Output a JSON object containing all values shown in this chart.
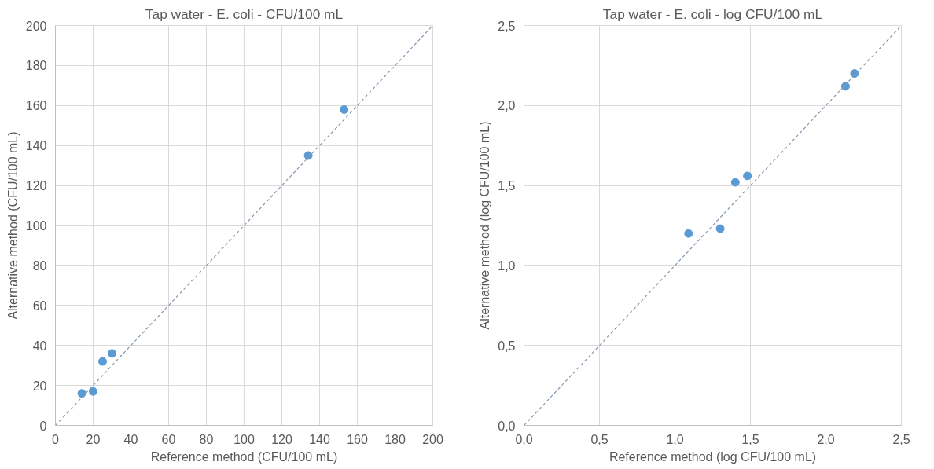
{
  "chart_data": [
    {
      "type": "scatter",
      "title": "Tap water - E. coli - CFU/100 mL",
      "xlabel": "Reference method (CFU/100 mL)",
      "ylabel": "Alternative method (CFU/100 mL)",
      "xlim": [
        0,
        200
      ],
      "ylim": [
        0,
        200
      ],
      "xticks": [
        0,
        20,
        40,
        60,
        80,
        100,
        120,
        140,
        160,
        180,
        200
      ],
      "yticks": [
        0,
        20,
        40,
        60,
        80,
        100,
        120,
        140,
        160,
        180,
        200
      ],
      "grid": true,
      "marker": "circle",
      "series": [
        {
          "color": "#5b9bd5",
          "x": [
            14,
            20,
            25,
            30,
            134,
            153
          ],
          "values": [
            16,
            17,
            32,
            36,
            135,
            158
          ]
        },
        {
          "type": "line",
          "color": "#8497b0",
          "line_style": "dashed",
          "marker": "none",
          "x": [
            0,
            200
          ],
          "values": [
            0,
            200
          ]
        }
      ]
    },
    {
      "type": "scatter",
      "title": "Tap water - E. coli - log CFU/100 mL",
      "xlabel": "Reference method (log CFU/100 mL)",
      "ylabel": "Alternative method (log CFU/100 mL)",
      "xlim": [
        0,
        2.5
      ],
      "ylim": [
        0,
        2.5
      ],
      "xticks": [
        {
          "value": 0,
          "label": "0,0"
        },
        {
          "value": 0.5,
          "label": "0,5"
        },
        {
          "value": 1,
          "label": "1,0"
        },
        {
          "value": 1.5,
          "label": "1,5"
        },
        {
          "value": 2,
          "label": "2,0"
        },
        {
          "value": 2.5,
          "label": "2,5"
        }
      ],
      "yticks": [
        {
          "value": 0,
          "label": "0,0"
        },
        {
          "value": 0.5,
          "label": "0,5"
        },
        {
          "value": 1,
          "label": "1,0"
        },
        {
          "value": 1.5,
          "label": "1,5"
        },
        {
          "value": 2,
          "label": "2,0"
        },
        {
          "value": 2.5,
          "label": "2,5"
        }
      ],
      "grid": true,
      "marker": "circle",
      "series": [
        {
          "color": "#5b9bd5",
          "x": [
            1.09,
            1.3,
            1.4,
            1.48,
            2.13,
            2.19
          ],
          "values": [
            1.2,
            1.23,
            1.52,
            1.56,
            2.12,
            2.2
          ]
        },
        {
          "type": "line",
          "color": "#8497b0",
          "line_style": "dashed",
          "marker": "none",
          "x": [
            0,
            2.5
          ],
          "values": [
            0,
            2.5
          ]
        }
      ]
    }
  ]
}
